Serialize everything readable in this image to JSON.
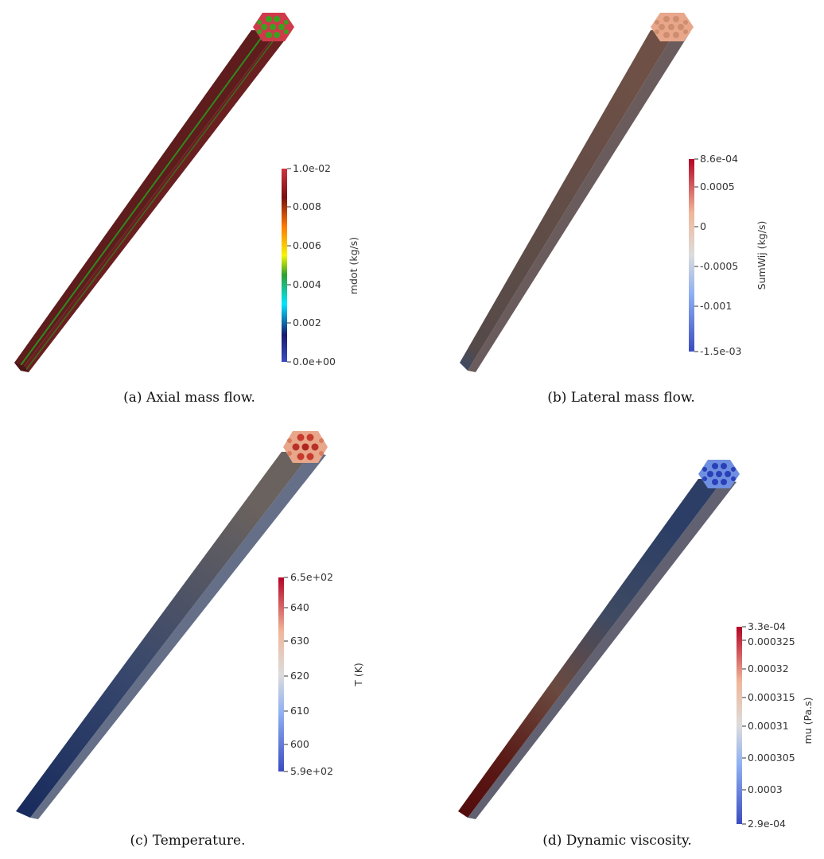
{
  "figure": {
    "panels": [
      {
        "id": "a",
        "caption": "(a) Axial mass flow.",
        "colorbar": {
          "title": "mdot (kg/s)",
          "ticks": [
            "1.0e-02",
            "0.008",
            "0.006",
            "0.004",
            "0.002",
            "0.0e+00"
          ],
          "range": [
            0.0,
            0.01
          ],
          "colormap": [
            "#3b4cc0",
            "#1a1a70",
            "#00e5ff",
            "#2ea02e",
            "#f5f500",
            "#ff7a00",
            "#7a1010",
            "#cf3540"
          ]
        }
      },
      {
        "id": "b",
        "caption": "(b) Lateral mass flow.",
        "colorbar": {
          "title": "SumWij (kg/s)",
          "ticks": [
            "8.6e-04",
            "0.0005",
            "0",
            "-0.0005",
            "-0.001",
            "-1.5e-03"
          ],
          "range": [
            -0.0015,
            0.00086
          ],
          "colormap": [
            "#3b4cc0",
            "#8fb0f2",
            "#dcdcdc",
            "#f0b79a",
            "#b40426"
          ]
        }
      },
      {
        "id": "c",
        "caption": "(c) Temperature.",
        "colorbar": {
          "title": "T (K)",
          "ticks": [
            "6.5e+02",
            "640",
            "630",
            "620",
            "610",
            "600",
            "5.9e+02"
          ],
          "range": [
            590,
            650
          ],
          "colormap": [
            "#3b4cc0",
            "#8fb0f2",
            "#dcdcdc",
            "#f0b79a",
            "#b40426"
          ]
        }
      },
      {
        "id": "d",
        "caption": "(d) Dynamic viscosity.",
        "colorbar": {
          "title": "mu (Pa.s)",
          "ticks": [
            "3.3e-04",
            "0.000325",
            "0.00032",
            "0.000315",
            "0.00031",
            "0.000305",
            "0.0003",
            "2.9e-04"
          ],
          "range": [
            0.00029,
            0.00033
          ],
          "colormap": [
            "#3b4cc0",
            "#8fb0f2",
            "#dcdcdc",
            "#f0b79a",
            "#b40426"
          ]
        }
      }
    ]
  }
}
